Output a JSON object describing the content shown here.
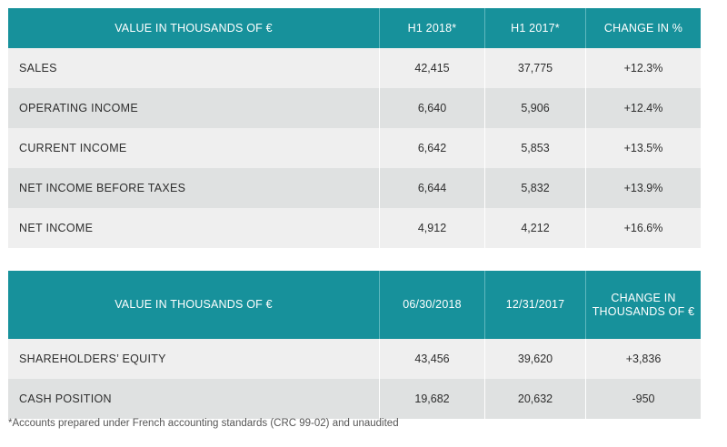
{
  "table1": {
    "headers": [
      "VALUE IN THOUSANDS OF €",
      "H1 2018*",
      "H1 2017*",
      "CHANGE IN %"
    ],
    "rows": [
      {
        "label": "SALES",
        "h1_2018": "42,415",
        "h1_2017": "37,775",
        "change": "+12.3%"
      },
      {
        "label": "OPERATING INCOME",
        "h1_2018": "6,640",
        "h1_2017": "5,906",
        "change": "+12.4%"
      },
      {
        "label": "CURRENT INCOME",
        "h1_2018": "6,642",
        "h1_2017": "5,853",
        "change": "+13.5%"
      },
      {
        "label": "NET INCOME BEFORE TAXES",
        "h1_2018": "6,644",
        "h1_2017": "5,832",
        "change": "+13.9%"
      },
      {
        "label": "NET INCOME",
        "h1_2018": "4,912",
        "h1_2017": "4,212",
        "change": "+16.6%"
      }
    ]
  },
  "table2": {
    "headers": [
      "VALUE IN THOUSANDS OF €",
      "06/30/2018",
      "12/31/2017",
      "CHANGE IN THOUSANDS OF €"
    ],
    "rows": [
      {
        "label": "SHAREHOLDERS’ EQUITY",
        "date_2018": "43,456",
        "date_2017": "39,620",
        "change": "+3,836"
      },
      {
        "label": "CASH POSITION",
        "date_2018": "19,682",
        "date_2017": "20,632",
        "change": "-950"
      }
    ]
  },
  "footnote": "*Accounts prepared under French accounting standards (CRC 99-02) and unaudited",
  "colors": {
    "header_bg": "#17919b",
    "header_text": "#ffffff",
    "row_light": "#efefef",
    "row_dark": "#dfe1e1"
  }
}
